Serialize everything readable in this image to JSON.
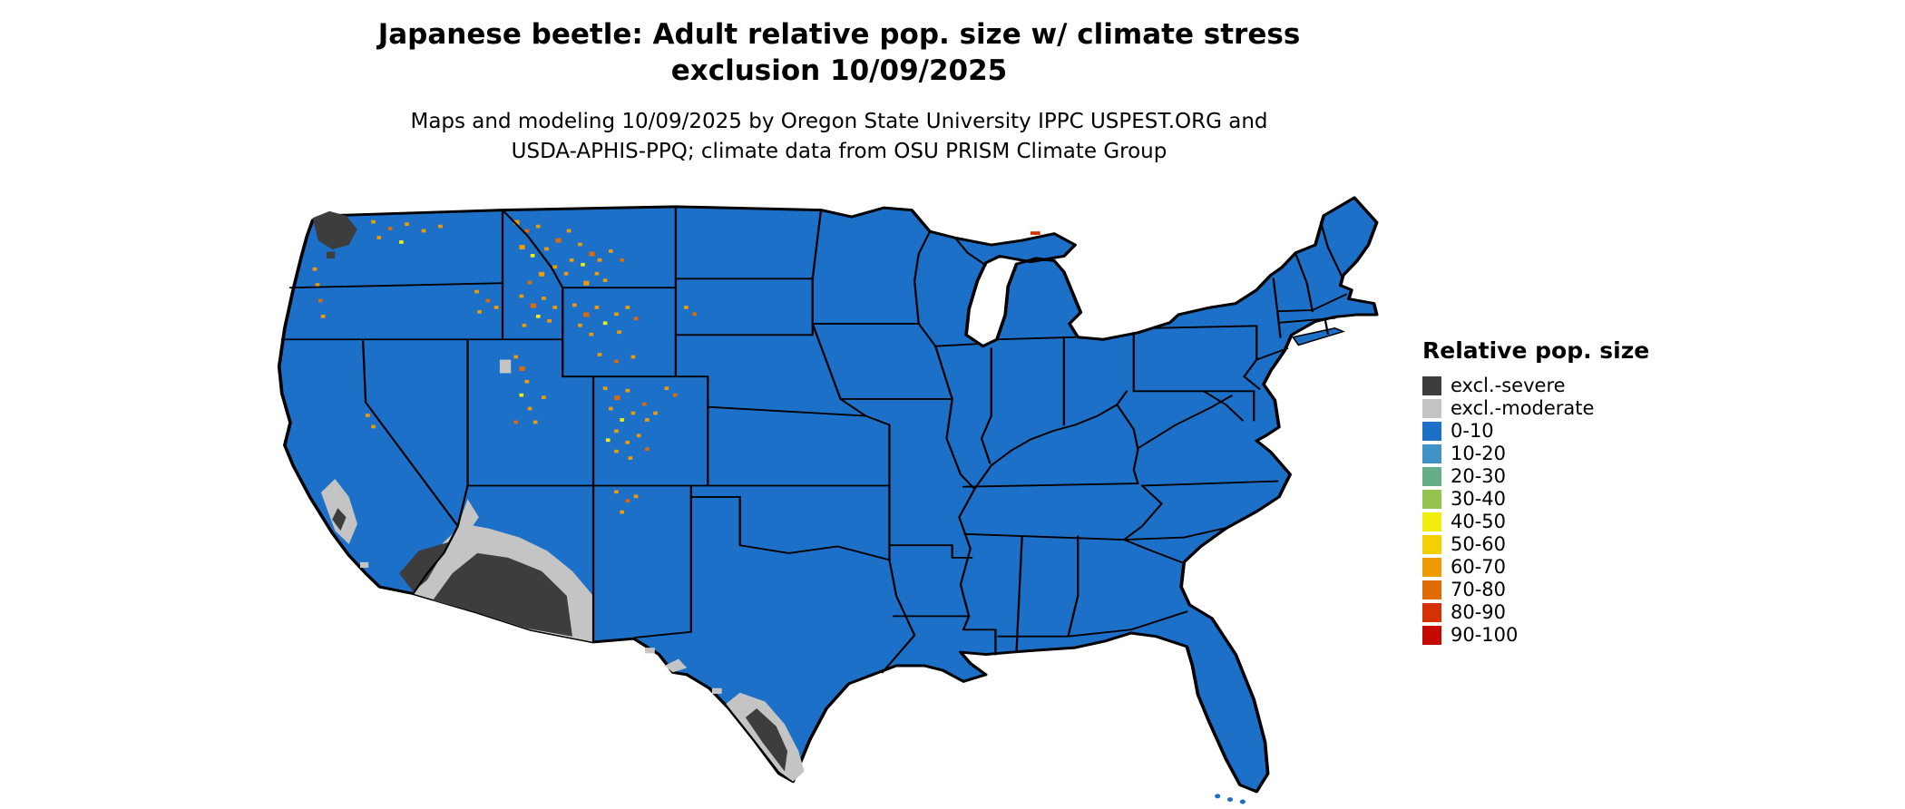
{
  "title": {
    "line1": "Japanese beetle: Adult relative pop. size w/ climate stress",
    "line2": "exclusion 10/09/2025"
  },
  "subtitle": {
    "line1": "Maps and modeling 10/09/2025 by Oregon State University IPPC USPEST.ORG and",
    "line2": "USDA-APHIS-PPQ; climate data from OSU PRISM Climate Group"
  },
  "legend": {
    "title": "Relative pop. size",
    "items": [
      {
        "label": "excl.-severe",
        "color": "#3d3d3d"
      },
      {
        "label": "excl.-moderate",
        "color": "#c4c4c4"
      },
      {
        "label": "0-10",
        "color": "#1d70c8"
      },
      {
        "label": "10-20",
        "color": "#3f93c6"
      },
      {
        "label": "20-30",
        "color": "#66ad8a"
      },
      {
        "label": "30-40",
        "color": "#94c44f"
      },
      {
        "label": "40-50",
        "color": "#f2ee0c"
      },
      {
        "label": "50-60",
        "color": "#f5cf05"
      },
      {
        "label": "60-70",
        "color": "#f09b03"
      },
      {
        "label": "70-80",
        "color": "#e06a04"
      },
      {
        "label": "80-90",
        "color": "#d43205"
      },
      {
        "label": "90-100",
        "color": "#c40a02"
      }
    ]
  },
  "map": {
    "name": "contiguous-united-states",
    "base_category": "0-10",
    "base_color": "#1d70c8",
    "border_color": "#000000",
    "regions": [
      {
        "area": "Most of the contiguous United States",
        "category": "0-10"
      },
      {
        "area": "Puget Sound / northwest Washington",
        "category": "excl.-severe"
      },
      {
        "area": "Southern Arizona and southeast California deserts",
        "category": "excl.-severe"
      },
      {
        "area": "Margins of the southwestern deserts and lower Colorado River",
        "category": "excl.-moderate"
      },
      {
        "area": "Southern Central Valley, California",
        "category": "excl.-moderate"
      },
      {
        "area": "South Texas along the Rio Grande",
        "category": "excl.-severe and excl.-moderate"
      },
      {
        "area": "Big Bend, Texas",
        "category": "excl.-moderate"
      },
      {
        "area": "Northern Rockies, Cascades, Wasatch, Colorado Rockies and high mountain zones",
        "category": "40-100 speckled (yellow / orange / red)"
      }
    ]
  }
}
